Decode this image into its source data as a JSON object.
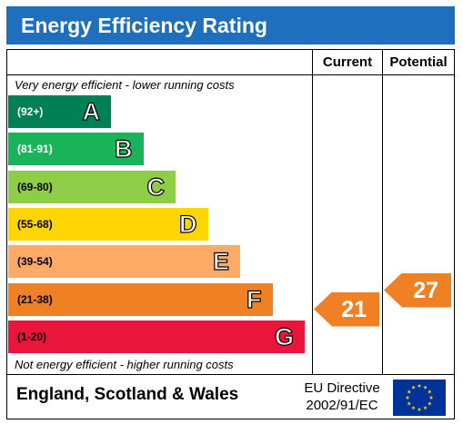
{
  "title": "Energy Efficiency Rating",
  "columns": {
    "current": "Current",
    "potential": "Potential"
  },
  "top_caption": "Very energy efficient - lower running costs",
  "bottom_caption": "Not energy efficient - higher running costs",
  "footer": {
    "region": "England, Scotland & Wales",
    "directive_line1": "EU Directive",
    "directive_line2": "2002/91/EC"
  },
  "chart_data": {
    "type": "bar",
    "categories": [
      "A",
      "B",
      "C",
      "D",
      "E",
      "F",
      "G"
    ],
    "ranges": [
      "(92+)",
      "(81-91)",
      "(69-80)",
      "(55-68)",
      "(39-54)",
      "(21-38)",
      "(1-20)"
    ],
    "colors": [
      "#008054",
      "#19b459",
      "#8dce46",
      "#ffd500",
      "#fcaa65",
      "#ef8023",
      "#e9153b"
    ],
    "current": {
      "value": 21,
      "band": "F",
      "color": "#ef8023"
    },
    "potential": {
      "value": 27,
      "band": "F",
      "color": "#ef8023"
    }
  }
}
